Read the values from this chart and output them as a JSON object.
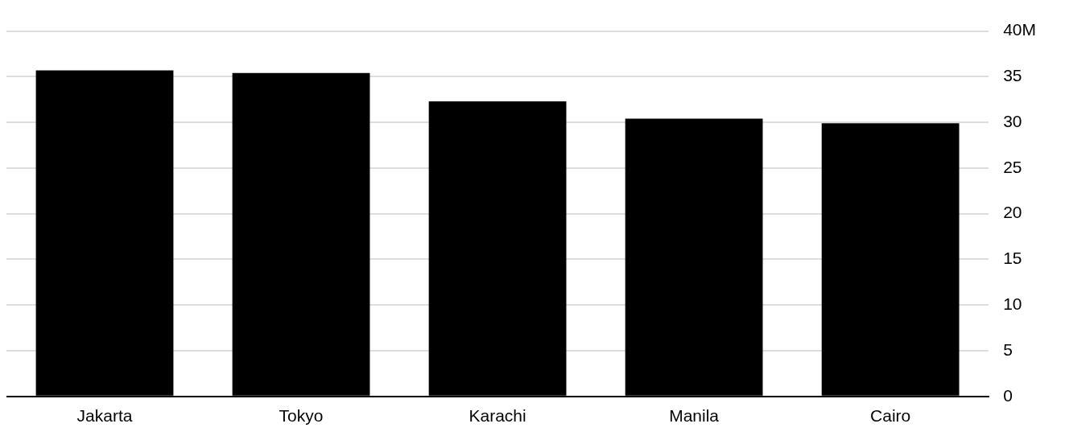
{
  "chart_data": {
    "type": "bar",
    "categories": [
      "Jakarta",
      "Tokyo",
      "Karachi",
      "Manila",
      "Cairo"
    ],
    "values": [
      35.7,
      35.4,
      32.3,
      30.4,
      29.9
    ],
    "color": "#000000",
    "ylim": [
      0,
      40
    ],
    "yticks": [
      0,
      5,
      10,
      15,
      20,
      25,
      30,
      35,
      {
        "value": 40,
        "label": "40M"
      }
    ],
    "grid": "y",
    "legend": false
  }
}
